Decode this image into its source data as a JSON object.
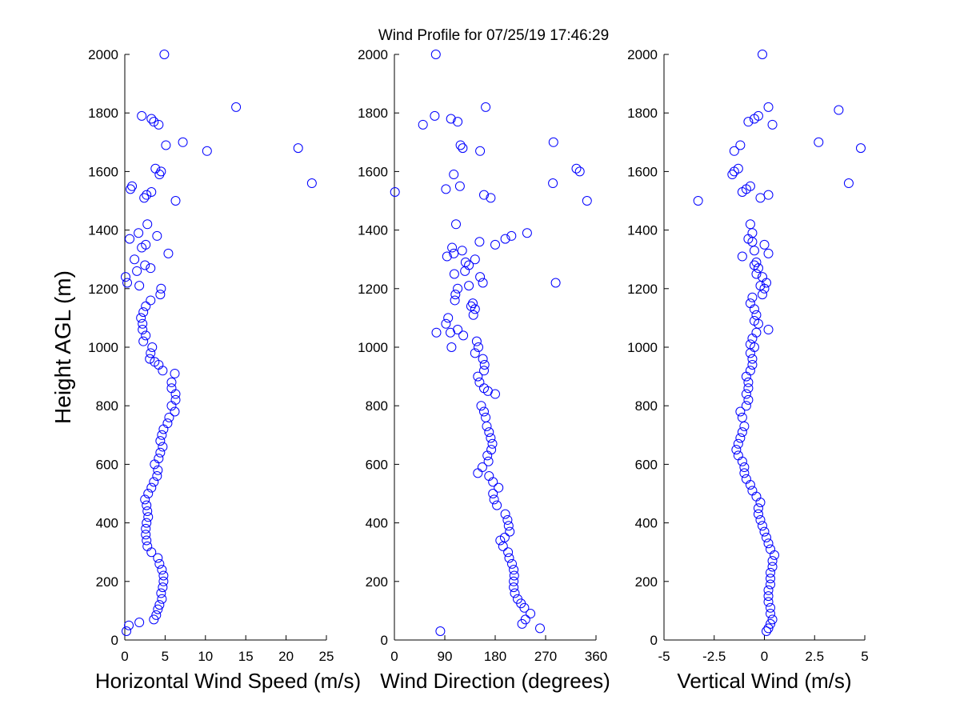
{
  "title": "Wind Profile for  07/25/19 17:46:29",
  "colors": {
    "marker": "#0000ff",
    "axes": "#000000",
    "background": "#ffffff"
  },
  "chart_data": [
    {
      "type": "scatter",
      "xlabel": "Horizontal Wind Speed (m/s)",
      "ylabel": "Height AGL (m)",
      "xlim": [
        0,
        25
      ],
      "ylim": [
        0,
        2000
      ],
      "xticks": [
        0,
        5,
        10,
        15,
        20,
        25
      ],
      "xtick_labels": [
        "0",
        "5",
        "10",
        "15",
        "20",
        "25"
      ],
      "yticks": [
        0,
        200,
        400,
        600,
        800,
        1000,
        1200,
        1400,
        1600,
        1800,
        2000
      ],
      "ytick_labels": [
        "0",
        "200",
        "400",
        "600",
        "800",
        "1000",
        "1200",
        "1400",
        "1600",
        "1800",
        "2000"
      ],
      "grid": false,
      "marker": "open-circle",
      "points": [
        [
          0.2,
          30
        ],
        [
          0.5,
          50
        ],
        [
          1.8,
          60
        ],
        [
          3.6,
          70
        ],
        [
          3.9,
          85
        ],
        [
          4.1,
          105
        ],
        [
          4.3,
          120
        ],
        [
          4.6,
          140
        ],
        [
          4.5,
          160
        ],
        [
          4.7,
          180
        ],
        [
          4.8,
          200
        ],
        [
          4.8,
          220
        ],
        [
          4.6,
          240
        ],
        [
          4.3,
          260
        ],
        [
          4.1,
          280
        ],
        [
          3.3,
          300
        ],
        [
          2.8,
          320
        ],
        [
          2.7,
          340
        ],
        [
          2.6,
          360
        ],
        [
          2.6,
          380
        ],
        [
          2.7,
          400
        ],
        [
          2.9,
          420
        ],
        [
          2.8,
          440
        ],
        [
          2.7,
          460
        ],
        [
          2.5,
          480
        ],
        [
          2.9,
          500
        ],
        [
          3.3,
          520
        ],
        [
          3.6,
          540
        ],
        [
          4.0,
          560
        ],
        [
          4.1,
          580
        ],
        [
          3.7,
          600
        ],
        [
          4.2,
          620
        ],
        [
          4.4,
          640
        ],
        [
          4.7,
          660
        ],
        [
          4.4,
          680
        ],
        [
          4.6,
          700
        ],
        [
          4.8,
          720
        ],
        [
          5.3,
          740
        ],
        [
          5.5,
          760
        ],
        [
          6.2,
          780
        ],
        [
          5.8,
          800
        ],
        [
          6.3,
          820
        ],
        [
          6.3,
          840
        ],
        [
          5.8,
          860
        ],
        [
          5.8,
          880
        ],
        [
          6.2,
          910
        ],
        [
          4.7,
          920
        ],
        [
          4.2,
          940
        ],
        [
          3.7,
          950
        ],
        [
          3.1,
          960
        ],
        [
          3.2,
          980
        ],
        [
          3.4,
          1000
        ],
        [
          2.3,
          1020
        ],
        [
          2.6,
          1040
        ],
        [
          2.2,
          1060
        ],
        [
          2.2,
          1080
        ],
        [
          2.0,
          1100
        ],
        [
          2.3,
          1120
        ],
        [
          2.6,
          1140
        ],
        [
          3.2,
          1160
        ],
        [
          4.4,
          1180
        ],
        [
          4.5,
          1200
        ],
        [
          1.8,
          1210
        ],
        [
          0.3,
          1220
        ],
        [
          0.1,
          1240
        ],
        [
          1.5,
          1260
        ],
        [
          3.2,
          1270
        ],
        [
          2.5,
          1280
        ],
        [
          1.2,
          1300
        ],
        [
          5.4,
          1320
        ],
        [
          2.1,
          1340
        ],
        [
          2.6,
          1350
        ],
        [
          0.6,
          1370
        ],
        [
          4.0,
          1380
        ],
        [
          1.7,
          1390
        ],
        [
          2.8,
          1420
        ],
        [
          6.3,
          1500
        ],
        [
          2.4,
          1510
        ],
        [
          2.7,
          1520
        ],
        [
          3.3,
          1530
        ],
        [
          0.7,
          1540
        ],
        [
          0.9,
          1550
        ],
        [
          4.3,
          1590
        ],
        [
          4.5,
          1600
        ],
        [
          3.8,
          1610
        ],
        [
          10.2,
          1670
        ],
        [
          21.5,
          1680
        ],
        [
          5.1,
          1690
        ],
        [
          7.2,
          1700
        ],
        [
          4.2,
          1760
        ],
        [
          3.6,
          1770
        ],
        [
          3.3,
          1780
        ],
        [
          2.1,
          1790
        ],
        [
          13.8,
          1820
        ],
        [
          23.2,
          1560
        ],
        [
          4.9,
          2000
        ]
      ]
    },
    {
      "type": "scatter",
      "xlabel": "Wind Direction (degrees)",
      "ylabel": "",
      "xlim": [
        0,
        360
      ],
      "ylim": [
        0,
        2000
      ],
      "xticks": [
        0,
        90,
        180,
        270,
        360
      ],
      "xtick_labels": [
        "0",
        "90",
        "180",
        "270",
        "360"
      ],
      "yticks": [
        0,
        200,
        400,
        600,
        800,
        1000,
        1200,
        1400,
        1600,
        1800,
        2000
      ],
      "ytick_labels": [
        "0",
        "200",
        "400",
        "600",
        "800",
        "1000",
        "1200",
        "1400",
        "1600",
        "1800",
        "2000"
      ],
      "grid": false,
      "marker": "open-circle",
      "points": [
        [
          82,
          30
        ],
        [
          260,
          40
        ],
        [
          228,
          55
        ],
        [
          234,
          70
        ],
        [
          243,
          90
        ],
        [
          232,
          110
        ],
        [
          226,
          125
        ],
        [
          220,
          140
        ],
        [
          215,
          160
        ],
        [
          213,
          180
        ],
        [
          213,
          200
        ],
        [
          214,
          220
        ],
        [
          213,
          240
        ],
        [
          210,
          260
        ],
        [
          205,
          280
        ],
        [
          203,
          300
        ],
        [
          194,
          320
        ],
        [
          189,
          340
        ],
        [
          197,
          350
        ],
        [
          206,
          370
        ],
        [
          204,
          390
        ],
        [
          202,
          410
        ],
        [
          198,
          430
        ],
        [
          183,
          460
        ],
        [
          178,
          480
        ],
        [
          176,
          500
        ],
        [
          186,
          520
        ],
        [
          176,
          540
        ],
        [
          169,
          560
        ],
        [
          149,
          570
        ],
        [
          157,
          590
        ],
        [
          168,
          610
        ],
        [
          166,
          630
        ],
        [
          173,
          650
        ],
        [
          175,
          670
        ],
        [
          172,
          690
        ],
        [
          169,
          710
        ],
        [
          165,
          730
        ],
        [
          163,
          760
        ],
        [
          160,
          780
        ],
        [
          155,
          800
        ],
        [
          180,
          840
        ],
        [
          167,
          850
        ],
        [
          160,
          860
        ],
        [
          152,
          880
        ],
        [
          149,
          900
        ],
        [
          160,
          920
        ],
        [
          161,
          940
        ],
        [
          158,
          960
        ],
        [
          144,
          980
        ],
        [
          150,
          1000
        ],
        [
          102,
          1000
        ],
        [
          147,
          1020
        ],
        [
          123,
          1040
        ],
        [
          100,
          1050
        ],
        [
          75,
          1050
        ],
        [
          113,
          1060
        ],
        [
          92,
          1080
        ],
        [
          96,
          1100
        ],
        [
          141,
          1110
        ],
        [
          144,
          1130
        ],
        [
          137,
          1140
        ],
        [
          140,
          1150
        ],
        [
          108,
          1160
        ],
        [
          109,
          1180
        ],
        [
          113,
          1200
        ],
        [
          133,
          1210
        ],
        [
          288,
          1220
        ],
        [
          158,
          1220
        ],
        [
          153,
          1240
        ],
        [
          107,
          1250
        ],
        [
          126,
          1260
        ],
        [
          133,
          1280
        ],
        [
          127,
          1290
        ],
        [
          144,
          1300
        ],
        [
          94,
          1310
        ],
        [
          106,
          1320
        ],
        [
          121,
          1330
        ],
        [
          103,
          1340
        ],
        [
          180,
          1350
        ],
        [
          152,
          1360
        ],
        [
          198,
          1370
        ],
        [
          209,
          1380
        ],
        [
          237,
          1390
        ],
        [
          110,
          1420
        ],
        [
          1,
          1530
        ],
        [
          92,
          1540
        ],
        [
          117,
          1550
        ],
        [
          172,
          1510
        ],
        [
          160,
          1520
        ],
        [
          344,
          1500
        ],
        [
          283,
          1560
        ],
        [
          106,
          1590
        ],
        [
          325,
          1610
        ],
        [
          331,
          1600
        ],
        [
          153,
          1670
        ],
        [
          122,
          1680
        ],
        [
          118,
          1690
        ],
        [
          284,
          1700
        ],
        [
          51,
          1760
        ],
        [
          113,
          1770
        ],
        [
          101,
          1780
        ],
        [
          72,
          1790
        ],
        [
          163,
          1820
        ],
        [
          74,
          2000
        ]
      ]
    },
    {
      "type": "scatter",
      "xlabel": "Vertical Wind (m/s)",
      "ylabel": "",
      "xlim": [
        -5,
        5
      ],
      "ylim": [
        0,
        2000
      ],
      "xticks": [
        -5,
        -2.5,
        0,
        2.5,
        5
      ],
      "xtick_labels": [
        "-5",
        "-2.5",
        "0",
        "2.5",
        "5"
      ],
      "yticks": [
        0,
        200,
        400,
        600,
        800,
        1000,
        1200,
        1400,
        1600,
        1800,
        2000
      ],
      "ytick_labels": [
        "0",
        "200",
        "400",
        "600",
        "800",
        "1000",
        "1200",
        "1400",
        "1600",
        "1800",
        "2000"
      ],
      "grid": false,
      "marker": "open-circle",
      "points": [
        [
          0.1,
          30
        ],
        [
          0.2,
          40
        ],
        [
          0.3,
          55
        ],
        [
          0.4,
          70
        ],
        [
          0.3,
          90
        ],
        [
          0.3,
          110
        ],
        [
          0.2,
          130
        ],
        [
          0.2,
          150
        ],
        [
          0.2,
          170
        ],
        [
          0.3,
          190
        ],
        [
          0.3,
          210
        ],
        [
          0.3,
          230
        ],
        [
          0.4,
          250
        ],
        [
          0.4,
          270
        ],
        [
          0.5,
          290
        ],
        [
          0.3,
          310
        ],
        [
          0.2,
          330
        ],
        [
          0.1,
          350
        ],
        [
          0.0,
          370
        ],
        [
          -0.1,
          390
        ],
        [
          -0.2,
          410
        ],
        [
          -0.3,
          430
        ],
        [
          -0.3,
          450
        ],
        [
          -0.2,
          470
        ],
        [
          -0.4,
          490
        ],
        [
          -0.6,
          510
        ],
        [
          -0.7,
          530
        ],
        [
          -0.9,
          550
        ],
        [
          -1.0,
          570
        ],
        [
          -1.0,
          590
        ],
        [
          -1.1,
          610
        ],
        [
          -1.3,
          630
        ],
        [
          -1.4,
          650
        ],
        [
          -1.3,
          670
        ],
        [
          -1.2,
          690
        ],
        [
          -1.1,
          710
        ],
        [
          -1.0,
          730
        ],
        [
          -1.1,
          760
        ],
        [
          -1.2,
          780
        ],
        [
          -0.9,
          800
        ],
        [
          -0.8,
          820
        ],
        [
          -0.9,
          840
        ],
        [
          -0.8,
          860
        ],
        [
          -0.8,
          880
        ],
        [
          -0.9,
          900
        ],
        [
          -0.7,
          920
        ],
        [
          -0.6,
          940
        ],
        [
          -0.6,
          960
        ],
        [
          -0.7,
          980
        ],
        [
          -0.5,
          1000
        ],
        [
          -0.7,
          1010
        ],
        [
          -0.6,
          1030
        ],
        [
          -0.4,
          1050
        ],
        [
          0.2,
          1060
        ],
        [
          -0.3,
          1080
        ],
        [
          -0.5,
          1090
        ],
        [
          -0.4,
          1110
        ],
        [
          -0.5,
          1130
        ],
        [
          -0.7,
          1150
        ],
        [
          -0.6,
          1170
        ],
        [
          -0.1,
          1180
        ],
        [
          0.0,
          1200
        ],
        [
          -0.2,
          1210
        ],
        [
          0.1,
          1220
        ],
        [
          -0.1,
          1240
        ],
        [
          -0.4,
          1250
        ],
        [
          -0.3,
          1270
        ],
        [
          -0.5,
          1280
        ],
        [
          -0.4,
          1290
        ],
        [
          -1.1,
          1310
        ],
        [
          0.2,
          1320
        ],
        [
          -0.5,
          1330
        ],
        [
          0.0,
          1350
        ],
        [
          -0.6,
          1360
        ],
        [
          -0.8,
          1370
        ],
        [
          -0.6,
          1390
        ],
        [
          -0.7,
          1420
        ],
        [
          -3.3,
          1500
        ],
        [
          0.2,
          1520
        ],
        [
          -0.2,
          1510
        ],
        [
          -1.1,
          1530
        ],
        [
          -0.9,
          1540
        ],
        [
          -0.7,
          1550
        ],
        [
          4.2,
          1560
        ],
        [
          -1.6,
          1590
        ],
        [
          -1.5,
          1600
        ],
        [
          -1.3,
          1610
        ],
        [
          -1.5,
          1670
        ],
        [
          4.8,
          1680
        ],
        [
          -1.2,
          1690
        ],
        [
          2.7,
          1700
        ],
        [
          0.4,
          1760
        ],
        [
          -0.8,
          1770
        ],
        [
          -0.5,
          1780
        ],
        [
          -0.3,
          1790
        ],
        [
          3.7,
          1810
        ],
        [
          0.2,
          1820
        ],
        [
          -0.1,
          2000
        ]
      ]
    }
  ]
}
